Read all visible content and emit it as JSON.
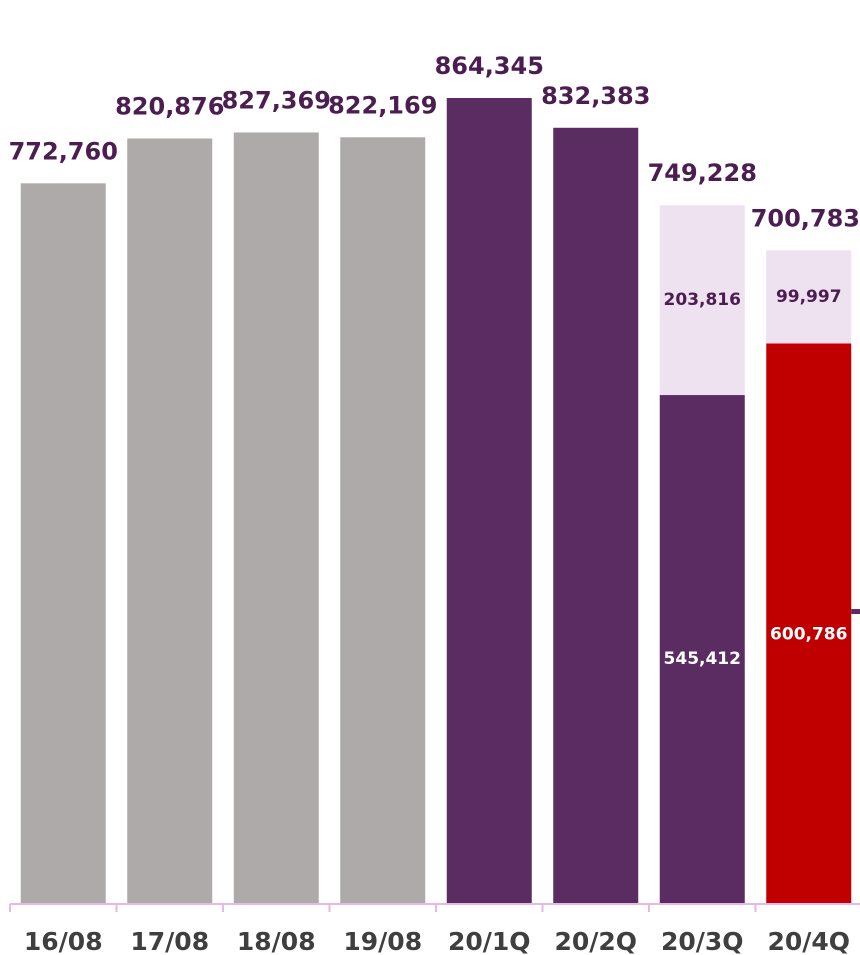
{
  "chart_data": {
    "type": "bar",
    "stacked": true,
    "categories": [
      "16/08",
      "17/08",
      "18/08",
      "19/08",
      "20/1Q",
      "20/2Q",
      "20/3Q",
      "20/4Q"
    ],
    "totals": [
      "772,760",
      "820,876",
      "827,369",
      "822,169",
      "864,345",
      "832,383",
      "749,228",
      "700,783"
    ],
    "bars": [
      {
        "total": 772760,
        "segments": [
          {
            "value": 772760,
            "color": "#aeaaaa",
            "label": ""
          }
        ]
      },
      {
        "total": 820876,
        "segments": [
          {
            "value": 820876,
            "color": "#aeaaaa",
            "label": ""
          }
        ]
      },
      {
        "total": 827369,
        "segments": [
          {
            "value": 827369,
            "color": "#aeaaaa",
            "label": ""
          }
        ]
      },
      {
        "total": 822169,
        "segments": [
          {
            "value": 822169,
            "color": "#aeaaaa",
            "label": ""
          }
        ]
      },
      {
        "total": 864345,
        "segments": [
          {
            "value": 864345,
            "color": "#5b2c62",
            "label": ""
          }
        ]
      },
      {
        "total": 832383,
        "segments": [
          {
            "value": 832383,
            "color": "#5b2c62",
            "label": ""
          }
        ]
      },
      {
        "total": 749228,
        "segments": [
          {
            "value": 545412,
            "color": "#5b2c62",
            "label": "545,412",
            "label_color": "#ffffff"
          },
          {
            "value": 203816,
            "color": "#eee1f0",
            "label": "203,816",
            "label_color": "#4b1d50"
          }
        ]
      },
      {
        "total": 700783,
        "segments": [
          {
            "value": 600786,
            "color": "#c00000",
            "label": "600,786",
            "label_color": "#ffffff"
          },
          {
            "value": 99997,
            "color": "#eee1f0",
            "label": "99,997",
            "label_color": "#4b1d50"
          }
        ]
      }
    ],
    "ylim": [
      0,
      900000
    ],
    "grid": false,
    "legend": "none",
    "title": "",
    "xlabel": "",
    "ylabel": ""
  },
  "colors": {
    "axis": "#e6b8e6",
    "total_label": "#4b1d50",
    "tick_label": "#3f3f3f"
  }
}
